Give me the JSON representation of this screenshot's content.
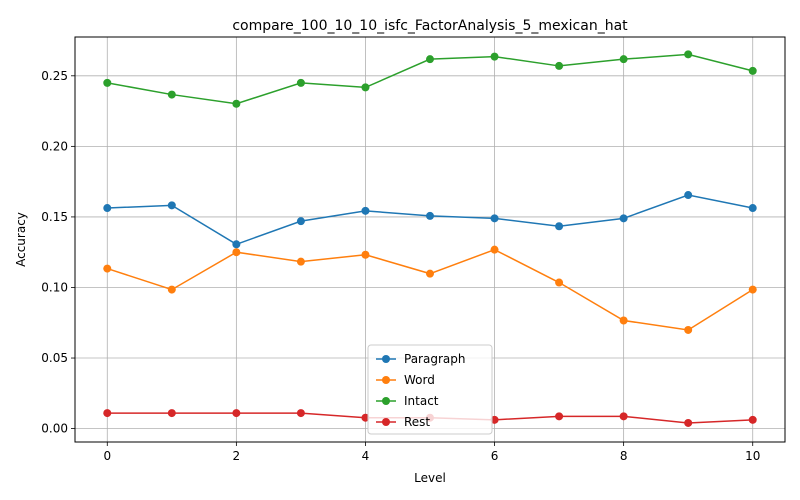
{
  "chart_data": {
    "type": "line",
    "title": "compare_100_10_10_isfc_FactorAnalysis_5_mexican_hat",
    "xlabel": "Level",
    "ylabel": "Accuracy",
    "x": [
      0,
      1,
      2,
      3,
      4,
      5,
      6,
      7,
      8,
      9,
      10
    ],
    "xlim": [
      -0.5,
      10.5
    ],
    "ylim": [
      -0.0095,
      0.2775
    ],
    "xticks": [
      0,
      2,
      4,
      6,
      8,
      10
    ],
    "xtick_labels": [
      "0",
      "2",
      "4",
      "6",
      "8",
      "10"
    ],
    "yticks": [
      0,
      0.05,
      0.1,
      0.15,
      0.2,
      0.25
    ],
    "ytick_labels": [
      "0.00",
      "0.05",
      "0.10",
      "0.15",
      "0.20",
      "0.25"
    ],
    "grid": true,
    "legend_position": "lower center",
    "series": [
      {
        "name": "Paragraph",
        "color": "#1f77b4",
        "values": [
          0.1563,
          0.1582,
          0.1306,
          0.147,
          0.1543,
          0.1507,
          0.149,
          0.1434,
          0.149,
          0.1655,
          0.1563
        ]
      },
      {
        "name": "Word",
        "color": "#ff7f0e",
        "values": [
          0.1134,
          0.0985,
          0.125,
          0.1183,
          0.1232,
          0.1098,
          0.1268,
          0.1035,
          0.0766,
          0.0699,
          0.0985
        ]
      },
      {
        "name": "Intact",
        "color": "#2ca02c",
        "values": [
          0.245,
          0.2367,
          0.2302,
          0.245,
          0.2418,
          0.2618,
          0.2636,
          0.257,
          0.2618,
          0.2652,
          0.2535
        ]
      },
      {
        "name": "Rest",
        "color": "#d62728",
        "values": [
          0.011,
          0.011,
          0.011,
          0.011,
          0.0077,
          0.0077,
          0.0062,
          0.0087,
          0.0087,
          0.004,
          0.0062
        ]
      }
    ]
  }
}
